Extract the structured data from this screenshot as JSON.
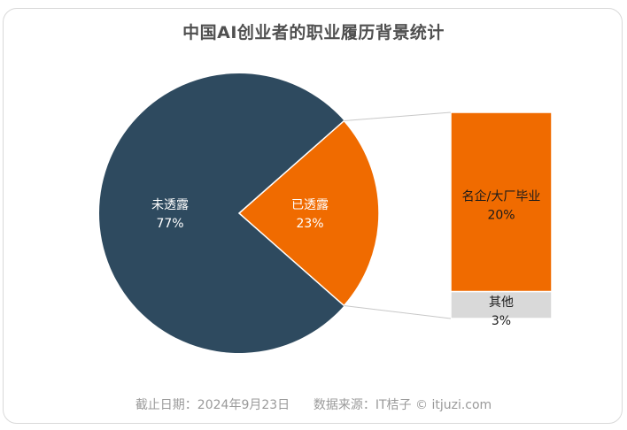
{
  "title": "中国AI创业者的职业履历背景统计",
  "footer": {
    "date": "截止日期：2024年9月23日",
    "source": "数据来源：IT桔子 © itjuzi.com"
  },
  "colors": {
    "undisclosed": "#2e4a5f",
    "disclosed": "#f06b00",
    "other": "#d9d9d9"
  },
  "chart_data": [
    {
      "type": "pie",
      "slices": [
        {
          "label": "未透露",
          "value": 77,
          "display": "77%",
          "color": "#2e4a5f"
        },
        {
          "label": "已透露",
          "value": 23,
          "display": "23%",
          "color": "#f06b00"
        }
      ]
    },
    {
      "type": "bar",
      "stacked": true,
      "segments": [
        {
          "label": "名企/大厂毕业",
          "value": 20,
          "display": "20%",
          "color": "#f06b00"
        },
        {
          "label": "其他",
          "value": 3,
          "display": "3%",
          "color": "#d9d9d9"
        }
      ]
    }
  ]
}
